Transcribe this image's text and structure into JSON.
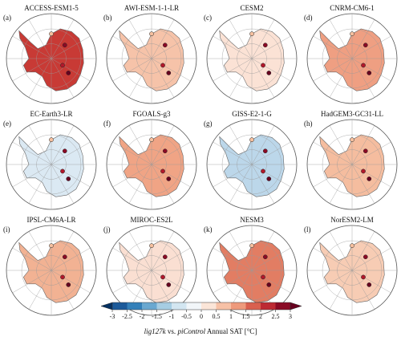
{
  "panels": [
    {
      "label": "(a)",
      "title": "ACCESS-ESM1-5",
      "color": "#c83a35"
    },
    {
      "label": "(b)",
      "title": "AWI-ESM-1-1-LR",
      "color": "#f6c3a9"
    },
    {
      "label": "(c)",
      "title": "CESM2",
      "color": "#fbe2d5"
    },
    {
      "label": "(d)",
      "title": "CNRM-CM6-1",
      "color": "#ef9f82"
    },
    {
      "label": "(e)",
      "title": "EC-Earth3-LR",
      "color": "#dbe9f3"
    },
    {
      "label": "(f)",
      "title": "FGOALS-g3",
      "color": "#f0a485"
    },
    {
      "label": "(g)",
      "title": "GISS-E2-1-G",
      "color": "#bcd7ea"
    },
    {
      "label": "(h)",
      "title": "HadGEM3-GC31-LL",
      "color": "#f5bd9f"
    },
    {
      "label": "(i)",
      "title": "IPSL-CM6A-LR",
      "color": "#f2b293"
    },
    {
      "label": "(j)",
      "title": "MIROC-ES2L",
      "color": "#fadfd2"
    },
    {
      "label": "(k)",
      "title": "NESM3",
      "color": "#e27d63"
    },
    {
      "label": "(l)",
      "title": "NorESM2-LM",
      "color": "#f7ccb4"
    }
  ],
  "colorbar": {
    "ticks": [
      -3,
      -2.5,
      -2,
      -1.5,
      -1,
      -0.5,
      0,
      0.5,
      1,
      1.5,
      2,
      2.5,
      3
    ],
    "colors": [
      "#053061",
      "#1c5a9a",
      "#3480b9",
      "#6aa8d0",
      "#a6cde3",
      "#d3e6f1",
      "#f2f6f9",
      "#fbe5d8",
      "#f7c1a6",
      "#ee9a7c",
      "#d9604f",
      "#bd2a33",
      "#8a0b25",
      "#67001f"
    ],
    "label_parts": [
      "lig127k",
      " vs. ",
      "piControl",
      " Annual SAT [°C]"
    ]
  }
}
